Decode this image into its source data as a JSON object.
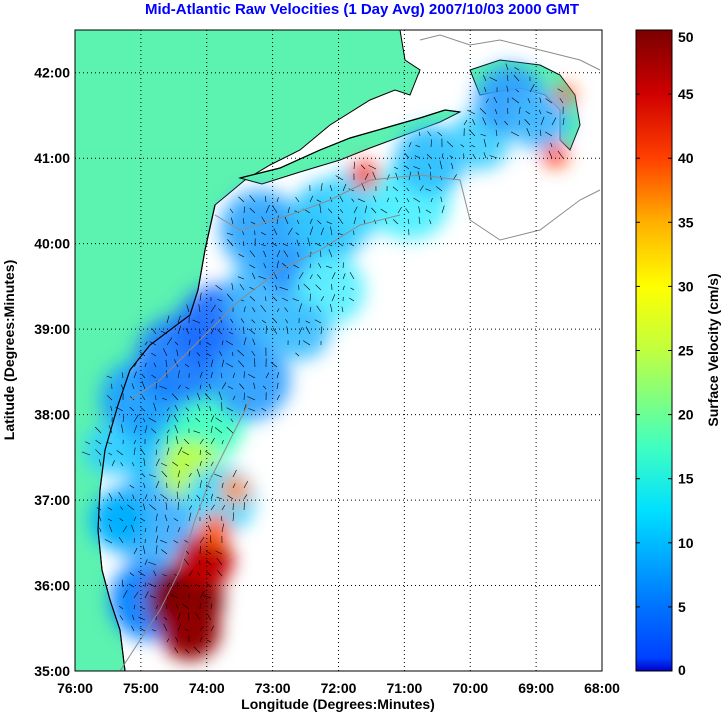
{
  "title": "Mid-Atlantic Raw Velocities (1 Day Avg) 2007/10/03 2000 GMT",
  "colors": {
    "title": "#0000ff",
    "land": "#5cf2b0",
    "ocean": "#ffffff",
    "coastline": "#000000",
    "bathymetry": "#8c8c8c",
    "grid": "#000000"
  },
  "map": {
    "xlabel": "Longitude (Degrees:Minutes)",
    "ylabel": "Latitude (Degrees:Minutes)",
    "lon_range": [
      -76,
      -68
    ],
    "lat_range": [
      35,
      42.5
    ],
    "lon_ticks": [
      -76,
      -75,
      -74,
      -73,
      -72,
      -71,
      -70,
      -69,
      -68
    ],
    "lon_tick_labels": [
      "76:00",
      "75:00",
      "74:00",
      "73:00",
      "72:00",
      "71:00",
      "70:00",
      "69:00",
      "68:00"
    ],
    "lat_ticks": [
      35,
      36,
      37,
      38,
      39,
      40,
      41,
      42
    ],
    "lat_tick_labels": [
      "35:00",
      "36:00",
      "37:00",
      "38:00",
      "39:00",
      "40:00",
      "41:00",
      "42:00"
    ],
    "grid": true,
    "grid_style": "dotted"
  },
  "colorbar": {
    "label": "Surface Velocity (cm/s)",
    "min": 0,
    "max": 50,
    "ticks": [
      0,
      5,
      10,
      15,
      20,
      25,
      30,
      35,
      40,
      45,
      50
    ],
    "tick_labels": [
      "0",
      "5",
      "10",
      "15",
      "20",
      "25",
      "30",
      "35",
      "40",
      "45",
      "50"
    ],
    "colormap": "jet"
  }
}
